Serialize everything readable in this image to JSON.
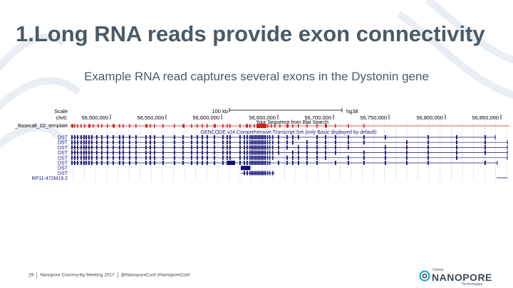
{
  "slide": {
    "title": "1.Long RNA reads provide exon connectivity",
    "subtitle": "Example RNA read captures several exons in the Dystonin gene"
  },
  "browser": {
    "scale_label": "Scale",
    "chrom_label": "chr6:",
    "scale_bar_label": "100 kb",
    "assembly": "hg38",
    "positions": [
      "56,500,000",
      "56,550,000",
      "56,600,000",
      "56,650,000",
      "56,700,000",
      "56,750,000",
      "56,800,000",
      "56,850,000"
    ],
    "blat_label": "Your Sequence from Blat Search",
    "read_track_label": "_Basecall_1D_template",
    "gencode_label": "GENCODE v24 Comprehensive Transcript Set (only Basic displayed by default)",
    "transcripts": [
      "DST",
      "DST",
      "DST",
      "DST",
      "DST",
      "DST",
      "DST",
      "DST"
    ],
    "extra_gene": "RP11-472M19.2",
    "colors": {
      "read": "#cc2222",
      "gene": "#101070",
      "label_blue": "#1a1a8c",
      "grid": "#b8c8e8"
    }
  },
  "footer": {
    "page_number": "29",
    "meeting": "Nanopore Community Meeting 2017",
    "handles": "@NanoporeConf #NanoporeConf"
  },
  "logo": {
    "small_text": "Oxford",
    "main_text": "NANOPORE",
    "sub_text": "Technologies"
  }
}
